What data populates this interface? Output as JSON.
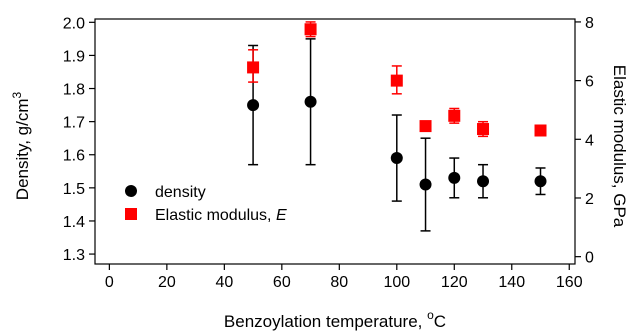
{
  "chart_data": {
    "type": "scatter",
    "x_axis": {
      "label": "Benzoylation temperature,",
      "unit_superscript": "o",
      "unit": "C",
      "ticks": [
        0,
        20,
        40,
        60,
        80,
        100,
        120,
        140,
        160
      ],
      "range": [
        -5,
        162
      ]
    },
    "y_left": {
      "label": "Density, g/cm",
      "label_superscript": "3",
      "ticks": [
        "1.3",
        "1.4",
        "1.5",
        "1.6",
        "1.7",
        "1.8",
        "1.9",
        "2.0"
      ],
      "range": [
        1.27,
        2.01
      ]
    },
    "y_right": {
      "label": "Elastic modulus, GPa",
      "ticks": [
        0,
        2,
        4,
        6,
        8
      ],
      "range": [
        -0.25,
        8.1
      ]
    },
    "series": [
      {
        "name": "density",
        "axis": "left",
        "marker": "circle",
        "color": "#000000",
        "points": [
          {
            "x": 50,
            "y": 1.75,
            "lo": 1.57,
            "hi": 1.93
          },
          {
            "x": 70,
            "y": 1.76,
            "lo": 1.57,
            "hi": 1.95
          },
          {
            "x": 100,
            "y": 1.59,
            "lo": 1.46,
            "hi": 1.72
          },
          {
            "x": 110,
            "y": 1.51,
            "lo": 1.37,
            "hi": 1.65
          },
          {
            "x": 120,
            "y": 1.53,
            "lo": 1.47,
            "hi": 1.59
          },
          {
            "x": 130,
            "y": 1.52,
            "lo": 1.47,
            "hi": 1.57
          },
          {
            "x": 150,
            "y": 1.52,
            "lo": 1.48,
            "hi": 1.56
          }
        ]
      },
      {
        "name": "Elastic modulus, ",
        "name_italic": "E",
        "axis": "right",
        "marker": "square",
        "color": "#ff0000",
        "points": [
          {
            "x": 50,
            "y": 6.45,
            "lo": 5.95,
            "hi": 7.05
          },
          {
            "x": 70,
            "y": 7.75,
            "lo": 7.5,
            "hi": 8.0
          },
          {
            "x": 100,
            "y": 6.0,
            "lo": 5.55,
            "hi": 6.5
          },
          {
            "x": 110,
            "y": 4.45,
            "lo": 4.3,
            "hi": 4.6
          },
          {
            "x": 120,
            "y": 4.8,
            "lo": 4.55,
            "hi": 5.05
          },
          {
            "x": 130,
            "y": 4.35,
            "lo": 4.1,
            "hi": 4.6
          },
          {
            "x": 150,
            "y": 4.3,
            "lo": 4.2,
            "hi": 4.4
          }
        ]
      }
    ],
    "legend": {
      "position": "left-middle"
    },
    "grid": false
  }
}
